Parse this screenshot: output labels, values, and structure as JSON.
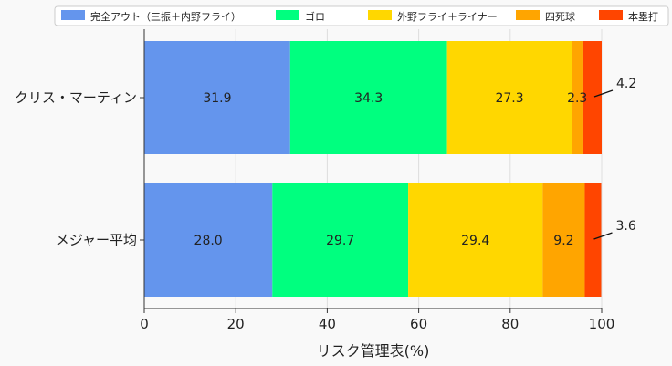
{
  "chart_data": {
    "type": "bar",
    "orientation": "horizontal",
    "stacked": true,
    "categories": [
      "クリス・マーティン",
      "メジャー平均"
    ],
    "series": [
      {
        "name": "完全アウト（三振＋内野フライ）",
        "color": "#6495ED",
        "values": [
          31.9,
          28.0
        ]
      },
      {
        "name": "ゴロ",
        "color": "#00FF7F",
        "values": [
          34.3,
          29.7
        ]
      },
      {
        "name": "外野フライ＋ライナー",
        "color": "#FFD700",
        "values": [
          27.3,
          29.4
        ]
      },
      {
        "name": "四死球",
        "color": "#FFA500",
        "values": [
          2.3,
          9.2
        ]
      },
      {
        "name": "本塁打",
        "color": "#FF4500",
        "values": [
          4.2,
          3.6
        ]
      }
    ],
    "data_labels": [
      [
        "31.9",
        "34.3",
        "27.3",
        "2.3",
        "4.2"
      ],
      [
        "28.0",
        "29.7",
        "29.4",
        "9.2",
        "3.6"
      ]
    ],
    "xlabel": "リスク管理表(%)",
    "xlim": [
      0,
      100
    ],
    "xticks": [
      "0",
      "20",
      "40",
      "60",
      "80",
      "100"
    ],
    "grid": true,
    "legend_position": "top"
  }
}
